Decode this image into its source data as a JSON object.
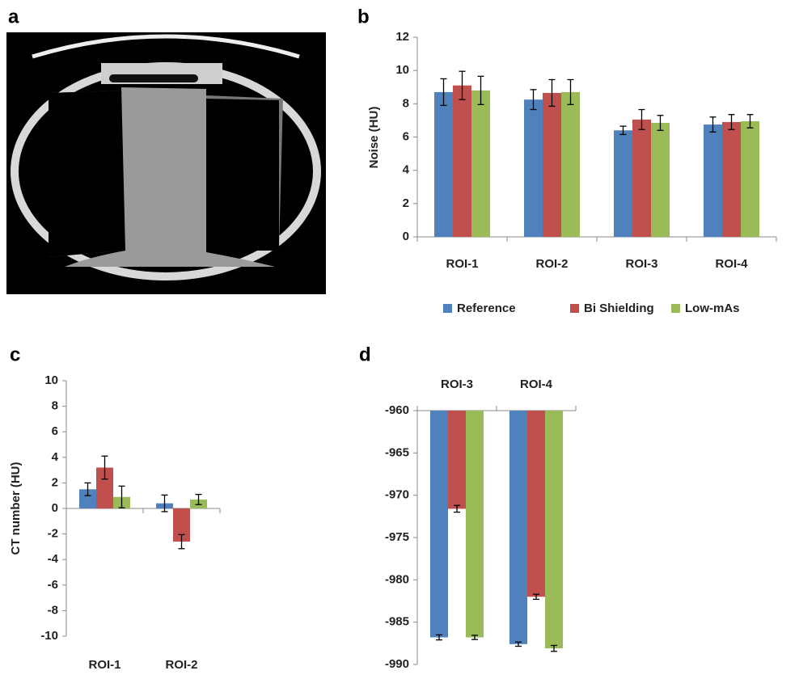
{
  "image_panel": {
    "label": "a"
  },
  "chart_data": [
    {
      "type": "bar",
      "panel_label": "b",
      "y_label": "Noise (HU)",
      "categories": [
        "ROI-1",
        "ROI-2",
        "ROI-3",
        "ROI-4"
      ],
      "series": [
        {
          "name": "Reference",
          "color": "#4f81bd",
          "values": [
            8.7,
            8.25,
            6.4,
            6.75
          ],
          "errors": [
            0.8,
            0.6,
            0.25,
            0.45
          ]
        },
        {
          "name": "Bi Shielding",
          "color": "#c0504d",
          "values": [
            9.1,
            8.65,
            7.05,
            6.9
          ],
          "errors": [
            0.85,
            0.8,
            0.6,
            0.45
          ]
        },
        {
          "name": "Low-mAs",
          "color": "#9bbb59",
          "values": [
            8.8,
            8.7,
            6.85,
            6.95
          ],
          "errors": [
            0.85,
            0.75,
            0.45,
            0.4
          ]
        }
      ],
      "ylim": [
        0,
        12
      ],
      "yticks": [
        0,
        2,
        4,
        6,
        8,
        10,
        12
      ],
      "legend": "bottom"
    },
    {
      "type": "bar",
      "panel_label": "c",
      "y_label": "CT number (HU)",
      "categories": [
        "ROI-1",
        "ROI-2"
      ],
      "series": [
        {
          "color": "#4f81bd",
          "values": [
            1.5,
            0.4
          ],
          "errors": [
            0.5,
            0.65
          ]
        },
        {
          "color": "#c0504d",
          "values": [
            3.2,
            -2.6
          ],
          "errors": [
            0.9,
            0.55
          ]
        },
        {
          "color": "#9bbb59",
          "values": [
            0.9,
            0.7
          ],
          "errors": [
            0.85,
            0.4
          ]
        }
      ],
      "ylim": [
        -10,
        10
      ],
      "yticks": [
        -10,
        -8,
        -6,
        -4,
        -2,
        0,
        2,
        4,
        6,
        8,
        10
      ]
    },
    {
      "type": "bar",
      "panel_label": "d",
      "categories": [
        "ROI-3",
        "ROI-4"
      ],
      "series": [
        {
          "color": "#4f81bd",
          "values": [
            -986.8,
            -987.6
          ],
          "errors": [
            0.3,
            0.25
          ]
        },
        {
          "color": "#c0504d",
          "values": [
            -971.6,
            -982
          ],
          "errors": [
            0.4,
            0.3
          ]
        },
        {
          "color": "#9bbb59",
          "values": [
            -986.8,
            -988.1
          ],
          "errors": [
            0.25,
            0.35
          ]
        }
      ],
      "ylim": [
        -990,
        -960
      ],
      "yticks": [
        -990,
        -985,
        -980,
        -975,
        -970,
        -965,
        -960
      ]
    }
  ]
}
